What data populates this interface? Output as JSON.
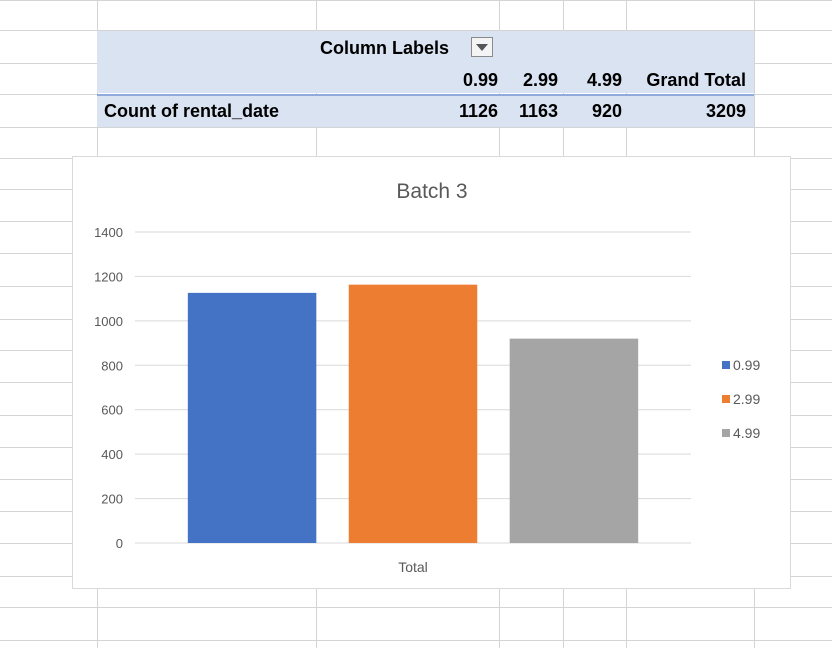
{
  "pivot": {
    "column_labels": "Column Labels",
    "headers": [
      "0.99",
      "2.99",
      "4.99",
      "Grand Total"
    ],
    "row_label": "Count of rental_date",
    "values": [
      "1126",
      "1163",
      "920",
      "3209"
    ]
  },
  "chart_data": {
    "type": "bar",
    "title": "Batch 3",
    "categories": [
      "Total"
    ],
    "series": [
      {
        "name": "0.99",
        "values": [
          1126
        ],
        "color": "#4472c4"
      },
      {
        "name": "2.99",
        "values": [
          1163
        ],
        "color": "#ed7d31"
      },
      {
        "name": "4.99",
        "values": [
          920
        ],
        "color": "#a5a5a5"
      }
    ],
    "ylim": [
      0,
      1400
    ],
    "yticks": [
      0,
      200,
      400,
      600,
      800,
      1000,
      1200,
      1400
    ],
    "grid": true,
    "legend": "right"
  }
}
